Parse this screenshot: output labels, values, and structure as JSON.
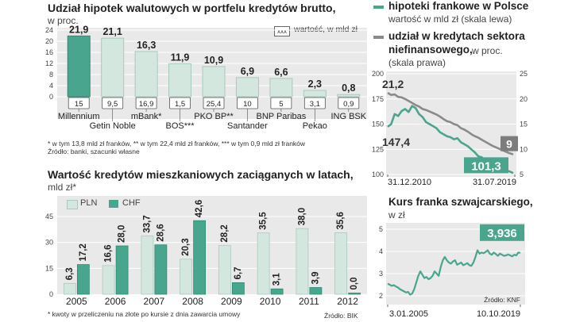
{
  "chart_data": [
    {
      "type": "bar",
      "title": "Udział hipotek walutowych w portfelu kredytów brutto,",
      "subtitle": "w proc.",
      "legend_box": "xxx",
      "legend_label": "wartość, w mld zł",
      "categories": [
        "Millennium",
        "Getin Noble",
        "mBank*",
        "BOS***",
        "PKO BP**",
        "Santander",
        "BNP Paribas",
        "Pekao",
        "ING BSK"
      ],
      "category_labels": [
        "Millennium",
        "Getin Noble",
        "mBank*",
        "BOS***",
        "PKO BP**",
        "Santander",
        "BNP Paribas",
        "Pekao",
        "ING BSK"
      ],
      "values": [
        21.9,
        21.1,
        16.3,
        11.9,
        10.9,
        6.9,
        6.6,
        2.3,
        0.8
      ],
      "value_labels": [
        "21,9",
        "21,1",
        "16,3",
        "11,9",
        "10,9",
        "6,9",
        "6,6",
        "2,3",
        "0,8"
      ],
      "box_values": [
        "15",
        "9,5",
        "16,9",
        "1,5",
        "25,4",
        "10",
        "5",
        "3,1",
        "0,9"
      ],
      "yticks": [
        "0",
        "4",
        "8",
        "12",
        "16",
        "20",
        "24"
      ],
      "ylim": [
        0,
        24
      ],
      "grid": true,
      "footnote_1": "* w tym 13,8 mld zł franków, ** w tym 22,4 mld zł franków, *** w tym 0,9 mld zł franków",
      "footnote_2": "Źródło: banki, szacunki własne"
    },
    {
      "type": "bar",
      "title": "Wartość kredytów mieszkaniowych zaciąganych w latach,",
      "subtitle": "mld zł*",
      "categories": [
        "2005",
        "2006",
        "2007",
        "2008",
        "2009",
        "2010",
        "2011",
        "2012"
      ],
      "series": [
        {
          "name": "PLN",
          "values": [
            6.3,
            16.6,
            33.7,
            20.3,
            28.2,
            35.5,
            38.0,
            35.6
          ],
          "labels": [
            "6,3",
            "16,6",
            "33,7",
            "20,3",
            "28,2",
            "35,5",
            "38,0",
            "35,6"
          ]
        },
        {
          "name": "CHF",
          "values": [
            17.2,
            28.0,
            28.6,
            42.6,
            6.7,
            3.1,
            3.9,
            0.0
          ],
          "labels": [
            "17,2",
            "28,0",
            "28,6",
            "42,6",
            "6,7",
            "3,1",
            "3,9",
            "0,0"
          ]
        }
      ],
      "yticks": [
        "0",
        "15",
        "30",
        "45"
      ],
      "ylim": [
        0,
        45
      ],
      "grid": true,
      "footnote": "* kwoty w przeliczeniu na złote po kursie z dnia zawarcia umowy",
      "source": "Źródło: BIK"
    },
    {
      "type": "line",
      "legend_1_title": "hipoteki frankowe w Polsce",
      "legend_1_sub": "wartość w mld zł (skala lewa)",
      "legend_2_title_a": "udział w kredytach sektora",
      "legend_2_title_b": "niefinansowego,",
      "legend_2_sub_a": "w proc.",
      "legend_2_sub_b": "(skala prawa)",
      "left_ticks": [
        "100",
        "125",
        "150",
        "175",
        "200"
      ],
      "left_ylim": [
        100,
        200
      ],
      "right_ticks": [
        "5",
        "10",
        "15",
        "20",
        "25"
      ],
      "right_ylim": [
        5,
        25
      ],
      "x_start_label": "31.12.2010",
      "x_end_label": "31.07.2019",
      "series": [
        {
          "name": "hipoteki frankowe w Polsce",
          "axis": "left",
          "color": "#4aa58e",
          "start_label": "147,4",
          "end_label": "101,3",
          "values": [
            147.4,
            150,
            160,
            158,
            163,
            165,
            162,
            168,
            166,
            160,
            157,
            152,
            150,
            148,
            146,
            142,
            140,
            138,
            137,
            135,
            136,
            132,
            130,
            128,
            125,
            122,
            118,
            117,
            114,
            112,
            110,
            108,
            106,
            105,
            104,
            103,
            101.3
          ]
        },
        {
          "name": "udział w kredytach sektora niefinansowego",
          "axis": "right",
          "color": "#8a8a8a",
          "start_label": "21,2",
          "end_label": "9",
          "values": [
            21.2,
            20.8,
            20.9,
            20.4,
            20.3,
            20.0,
            19.6,
            19.2,
            18.8,
            18.5,
            18.0,
            17.8,
            17.5,
            17.2,
            16.9,
            16.5,
            16.0,
            15.6,
            15.4,
            15.0,
            14.8,
            14.2,
            13.9,
            13.5,
            13.0,
            12.6,
            12.3,
            11.9,
            11.5,
            11.1,
            10.7,
            10.4,
            10.1,
            9.8,
            9.5,
            9.2,
            9.0
          ]
        }
      ],
      "grid": true
    },
    {
      "type": "line",
      "title": "Kurs franka szwajcarskiego,",
      "subtitle": "w zł",
      "yticks": [
        "2",
        "3",
        "4",
        "5"
      ],
      "ylim": [
        2,
        5
      ],
      "x_start_label": "3.01.2005",
      "x_end_label": "10.10.2019",
      "end_label": "3,936",
      "source": "Źródło: KNF",
      "series": [
        {
          "name": "Kurs franka szwajcarskiego",
          "color": "#4aa58e",
          "values": [
            2.55,
            2.5,
            2.45,
            2.48,
            2.42,
            2.38,
            2.3,
            2.25,
            2.2,
            2.15,
            2.18,
            2.05,
            2.1,
            2.3,
            2.6,
            2.9,
            3.1,
            2.95,
            2.8,
            2.85,
            2.75,
            2.8,
            2.9,
            3.1,
            3.0,
            2.9,
            3.3,
            3.6,
            3.75,
            3.6,
            3.5,
            3.45,
            3.55,
            3.6,
            3.4,
            3.45,
            3.5,
            3.38,
            3.42,
            3.47,
            3.38,
            3.35,
            3.5,
            3.75,
            4.05,
            3.9,
            3.95,
            3.92,
            3.98,
            4.05,
            3.9,
            3.85,
            3.95,
            3.88,
            3.8,
            3.9,
            3.85,
            3.8,
            3.82,
            3.86,
            3.82,
            3.78,
            3.85,
            3.82,
            3.95,
            3.936
          ]
        }
      ],
      "grid": true
    }
  ]
}
